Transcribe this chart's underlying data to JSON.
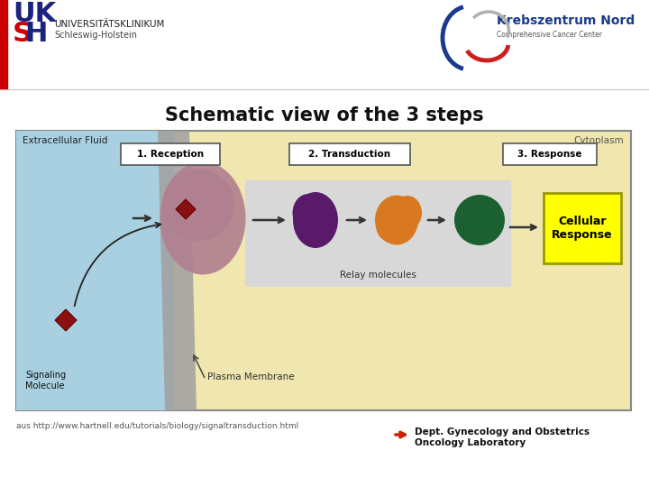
{
  "title": "Schematic view of the 3 steps",
  "bg_color": "#ffffff",
  "uksh_blue": "#1a237e",
  "uksh_red": "#cc0000",
  "footer_url": "aus http://www.hartnell.edu/tutorials/biology/signaltransduction.html",
  "footer_dept": "Dept. Gynecology and Obstetrics",
  "footer_lab": "Oncology Laboratory",
  "diagram_bg": "#f0e6b0",
  "extracell_bg": "#a8d0e0",
  "membrane_color": "#a0a0a0",
  "relay_box_bg": "#d8d8d8",
  "cellular_response_bg": "#ffff00",
  "label_reception": "1. Reception",
  "label_transduction": "2. Transduction",
  "label_response": "3. Response",
  "label_extracell": "Extracellular Fluid",
  "label_cytoplasm": "Cytoplasm",
  "label_relay": "Relay molecules",
  "label_plasma": "Plasma Membrane",
  "label_signaling": "Signaling\nMolecule",
  "label_cellular": "Cellular\nResponse",
  "receptor_color": "#b08090",
  "diamond_color": "#8b1010",
  "purple_color": "#5a1a6a",
  "orange_color": "#d87820",
  "green_color": "#1a6030",
  "kreb_blue": "#1a3a8a",
  "kreb_red": "#cc2020"
}
